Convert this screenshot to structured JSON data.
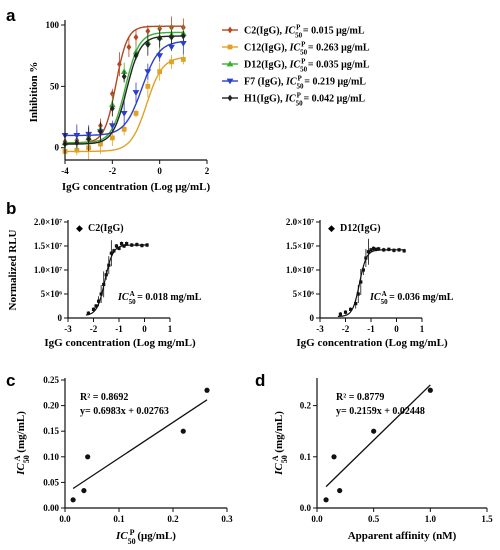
{
  "figure": {
    "panels": {
      "a": "a",
      "b": "b",
      "c": "c",
      "d": "d"
    }
  },
  "chart_data": [
    {
      "panel": "a",
      "type": "line",
      "xlabel": "IgG concentration (Log μg/mL)",
      "ylabel": "Inhibition %",
      "xlim": [
        -4,
        2
      ],
      "ylim": [
        -10,
        100
      ],
      "xticks": [
        "-4",
        "-2",
        "0",
        "2"
      ],
      "yticks": [
        "0",
        "50",
        "100"
      ],
      "legend_position": "right",
      "series": [
        {
          "name": "C2(IgG), IC50P = 0.015 μg/mL",
          "label_head": "C2(IgG), ",
          "label_ic": "IC",
          "label_sub": "50",
          "label_sup": "P",
          "label_value": " = 0.015 μg/mL",
          "color": "#b5461f",
          "marker": "diamond",
          "x": [
            -4,
            -3.5,
            -3,
            -2.5,
            -2,
            -1.7,
            -1.3,
            -1,
            -0.5,
            0,
            0.5,
            1
          ],
          "y": [
            5,
            6,
            9,
            18,
            44,
            68,
            82,
            90,
            95,
            97,
            98,
            98
          ]
        },
        {
          "name": "C12(IgG), IC50P = 0.263 μg/mL",
          "label_head": "C12(IgG), ",
          "label_ic": "IC",
          "label_sub": "50",
          "label_sup": "P",
          "label_value": " = 0.263 μg/mL",
          "color": "#e0a126",
          "marker": "square",
          "x": [
            -4,
            -3.5,
            -3,
            -2.5,
            -2,
            -1.5,
            -1,
            -0.5,
            0,
            0.5,
            1
          ],
          "y": [
            -3,
            -2,
            0,
            3,
            8,
            15,
            28,
            50,
            62,
            70,
            72
          ]
        },
        {
          "name": "D12(IgG), IC50P = 0.035 μg/mL",
          "label_head": "D12(IgG), ",
          "label_ic": "IC",
          "label_sub": "50",
          "label_sup": "P",
          "label_value": " = 0.035 μg/mL",
          "color": "#3cae35",
          "marker": "triangle",
          "x": [
            -4,
            -3.5,
            -3,
            -2.5,
            -2,
            -1.5,
            -1,
            -0.5,
            0,
            0.5,
            1
          ],
          "y": [
            4,
            5,
            8,
            15,
            35,
            62,
            78,
            86,
            90,
            92,
            93
          ]
        },
        {
          "name": "F7 (IgG), IC50P = 0.219 μg/mL",
          "label_head": "F7 (IgG), ",
          "label_ic": "IC",
          "label_sub": "50",
          "label_sup": "P",
          "label_value": " = 0.219 μg/mL",
          "color": "#2c3fcb",
          "marker": "triangle-down",
          "x": [
            -4,
            -3.5,
            -3,
            -2.5,
            -2,
            -1.5,
            -1,
            -0.5,
            0,
            0.5,
            1
          ],
          "y": [
            10,
            10,
            11,
            13,
            18,
            28,
            45,
            62,
            75,
            82,
            85
          ]
        },
        {
          "name": "H1(IgG), IC50P = 0.042 μg/mL",
          "label_head": "H1(IgG), ",
          "label_ic": "IC",
          "label_sub": "50",
          "label_sup": "P",
          "label_value": " = 0.042 μg/mL",
          "color": "#222222",
          "marker": "diamond",
          "x": [
            -4,
            -3.5,
            -3,
            -2.5,
            -2,
            -1.5,
            -1,
            -0.5,
            0,
            0.5,
            1
          ],
          "y": [
            3,
            4,
            7,
            13,
            32,
            58,
            75,
            84,
            89,
            90,
            91
          ]
        }
      ]
    },
    {
      "panel": "b-left",
      "type": "line",
      "xlabel": "IgG concentration (Log mg/mL)",
      "ylabel": "Normalized RLU",
      "xlim": [
        -3,
        1
      ],
      "ylim": [
        0,
        20000000
      ],
      "xticks": [
        "-3",
        "-2",
        "-1",
        "0",
        "1"
      ],
      "yticks": [
        "0",
        "5×10⁶",
        "1.0×10⁷",
        "1.5×10⁷",
        "2.0×10⁷"
      ],
      "legend": "C2(IgG)",
      "annotation_ic": "IC",
      "annotation_sub": "50",
      "annotation_sup": "A",
      "annotation_value": " = 0.018 mg/mL",
      "series": [
        {
          "name": "C2(IgG)",
          "x": [
            -2.2,
            -2.0,
            -1.9,
            -1.8,
            -1.7,
            -1.6,
            -1.5,
            -1.4,
            -1.3,
            -1.2,
            -1.1,
            -1.0,
            -0.9,
            -0.8,
            -0.7,
            -0.5,
            -0.3,
            -0.1,
            0.1
          ],
          "y": [
            1000000,
            1800000,
            2500000,
            3500000,
            5000000,
            7000000,
            9000000,
            11000000,
            13500000,
            14000000,
            15000000,
            14500000,
            15500000,
            15000000,
            15500000,
            15200000,
            15300000,
            15100000,
            15200000
          ]
        }
      ]
    },
    {
      "panel": "b-right",
      "type": "line",
      "xlabel": "IgG concentration (Log mg/mL)",
      "ylabel": "",
      "xlim": [
        -3,
        1
      ],
      "ylim": [
        0,
        20000000
      ],
      "xticks": [
        "-3",
        "-2",
        "-1",
        "0",
        "1"
      ],
      "yticks": [
        "0",
        "5×10⁶",
        "1.0×10⁷",
        "1.5×10⁷",
        "2.0×10⁷"
      ],
      "legend": "D12(IgG)",
      "annotation_ic": "IC",
      "annotation_sub": "50",
      "annotation_sup": "A",
      "annotation_value": " = 0.036 mg/mL",
      "series": [
        {
          "name": "D12(IgG)",
          "x": [
            -2.2,
            -2.0,
            -1.8,
            -1.6,
            -1.5,
            -1.4,
            -1.3,
            -1.2,
            -1.1,
            -1.0,
            -0.9,
            -0.8,
            -0.7,
            -0.5,
            -0.3,
            -0.1,
            0.1,
            0.3
          ],
          "y": [
            800000,
            1200000,
            1800000,
            3000000,
            5000000,
            7500000,
            10000000,
            12500000,
            13800000,
            14200000,
            14500000,
            14300000,
            14400000,
            14200000,
            14300000,
            14100000,
            14200000,
            14000000
          ]
        }
      ]
    },
    {
      "panel": "c",
      "type": "scatter",
      "xlabel_ic": "IC",
      "xlabel_sub": "50",
      "xlabel_sup": "P",
      "xlabel_unit": " (μg/mL)",
      "ylabel_ic": "IC",
      "ylabel_sub": "50",
      "ylabel_sup": "A",
      "ylabel_unit": " (mg/mL)",
      "xlim": [
        0,
        0.3
      ],
      "ylim": [
        0,
        0.25
      ],
      "xticks": [
        "0.0",
        "0.1",
        "0.2",
        "0.3"
      ],
      "yticks": [
        "0.00",
        "0.05",
        "0.10",
        "0.15",
        "0.20",
        "0.25"
      ],
      "r2": "R² = 0.8692",
      "equation": "y= 0.6983x + 0.02763",
      "fit": {
        "slope": 0.6983,
        "intercept": 0.02763
      },
      "points": {
        "x": [
          0.015,
          0.035,
          0.042,
          0.219,
          0.263
        ],
        "y": [
          0.016,
          0.034,
          0.1,
          0.15,
          0.23
        ]
      }
    },
    {
      "panel": "d",
      "type": "scatter",
      "xlabel": "Apparent affinity (nM)",
      "ylabel_ic": "IC",
      "ylabel_sub": "50",
      "ylabel_sup": "A",
      "ylabel_unit": " (mg/mL)",
      "xlim": [
        0,
        1.5
      ],
      "ylim": [
        0,
        0.25
      ],
      "xticks": [
        "0.0",
        "0.5",
        "1.0",
        "1.5"
      ],
      "yticks": [
        "0.0",
        "0.1",
        "0.2"
      ],
      "r2": "R² = 0.8779",
      "equation": "y= 0.2159x + 0.02448",
      "fit": {
        "slope": 0.2159,
        "intercept": 0.02448
      },
      "points": {
        "x": [
          0.08,
          0.15,
          0.2,
          0.5,
          1.0
        ],
        "y": [
          0.016,
          0.1,
          0.034,
          0.15,
          0.23
        ]
      }
    }
  ]
}
